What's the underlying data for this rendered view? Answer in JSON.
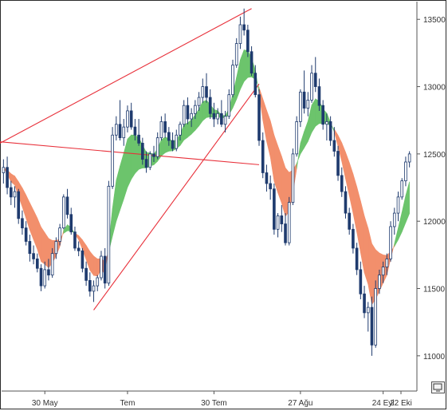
{
  "chart_data": {
    "type": "candlestick",
    "x_ticks": [
      "30 May",
      "Tem",
      "30 Tem",
      "27 Ağu",
      "24 Eyl",
      "22 Eki"
    ],
    "y_ticks": [
      11000,
      11500,
      12000,
      12500,
      13000,
      13500
    ],
    "ylim": [
      10750,
      13620
    ],
    "grid": false,
    "colors": {
      "up_candle": "#ffffff",
      "down_candle": "#1f3b6e",
      "candle_outline": "#1f3b6e",
      "bull_cloud": "#6cc46c",
      "bear_cloud": "#f28f6c",
      "trendline": "#e8303a"
    },
    "trendlines": [
      {
        "from": [
          "start",
          12580
        ],
        "to": [
          "mid Ağu",
          13580
        ]
      },
      {
        "from": [
          "start",
          12590
        ],
        "to": [
          "late Ağu",
          12420
        ]
      },
      {
        "from": [
          "early Tem",
          11340
        ],
        "to": [
          "late Ağu",
          13020
        ]
      }
    ],
    "candles": [
      [
        12360,
        12460,
        12280,
        12400
      ],
      [
        12400,
        12480,
        12200,
        12250
      ],
      [
        12250,
        12300,
        12120,
        12180
      ],
      [
        12180,
        12260,
        12100,
        12220
      ],
      [
        12220,
        12240,
        11980,
        12020
      ],
      [
        12020,
        12080,
        11900,
        11950
      ],
      [
        11950,
        12000,
        11820,
        11850
      ],
      [
        11850,
        11900,
        11700,
        11760
      ],
      [
        11760,
        11820,
        11680,
        11720
      ],
      [
        11720,
        11760,
        11620,
        11650
      ],
      [
        11650,
        11680,
        11480,
        11520
      ],
      [
        11520,
        11700,
        11500,
        11640
      ],
      [
        11640,
        11720,
        11560,
        11600
      ],
      [
        11600,
        11800,
        11580,
        11760
      ],
      [
        11760,
        11880,
        11720,
        11850
      ],
      [
        11850,
        11980,
        11820,
        11950
      ],
      [
        11950,
        12200,
        11940,
        12180
      ],
      [
        12180,
        12240,
        12020,
        12050
      ],
      [
        12050,
        12100,
        11900,
        11920
      ],
      [
        11920,
        11960,
        11780,
        11800
      ],
      [
        11800,
        11850,
        11740,
        11780
      ],
      [
        11780,
        11800,
        11620,
        11650
      ],
      [
        11650,
        11700,
        11520,
        11560
      ],
      [
        11560,
        11620,
        11440,
        11480
      ],
      [
        11480,
        11560,
        11400,
        11520
      ],
      [
        11520,
        11600,
        11480,
        11580
      ],
      [
        11580,
        11780,
        11560,
        11740
      ],
      [
        11740,
        11800,
        11500,
        11540
      ],
      [
        11540,
        12300,
        11520,
        12260
      ],
      [
        12260,
        12700,
        12240,
        12640
      ],
      [
        12640,
        12780,
        12600,
        12720
      ],
      [
        12720,
        12900,
        12600,
        12620
      ],
      [
        12620,
        12760,
        12560,
        12700
      ],
      [
        12700,
        12860,
        12660,
        12820
      ],
      [
        12820,
        12880,
        12680,
        12700
      ],
      [
        12700,
        12760,
        12600,
        12640
      ],
      [
        12640,
        12760,
        12560,
        12580
      ],
      [
        12580,
        12620,
        12420,
        12460
      ],
      [
        12460,
        12520,
        12360,
        12400
      ],
      [
        12400,
        12520,
        12380,
        12500
      ],
      [
        12500,
        12560,
        12440,
        12480
      ],
      [
        12480,
        12660,
        12460,
        12620
      ],
      [
        12620,
        12780,
        12600,
        12740
      ],
      [
        12740,
        12800,
        12620,
        12660
      ],
      [
        12660,
        12700,
        12560,
        12600
      ],
      [
        12600,
        12660,
        12520,
        12540
      ],
      [
        12540,
        12680,
        12520,
        12640
      ],
      [
        12640,
        12740,
        12600,
        12720
      ],
      [
        12720,
        12900,
        12700,
        12860
      ],
      [
        12860,
        12920,
        12720,
        12760
      ],
      [
        12760,
        12840,
        12700,
        12800
      ],
      [
        12800,
        12900,
        12760,
        12860
      ],
      [
        12860,
        12960,
        12820,
        12920
      ],
      [
        12920,
        13060,
        12880,
        13000
      ],
      [
        13000,
        13100,
        12880,
        12920
      ],
      [
        12920,
        12980,
        12760,
        12800
      ],
      [
        12800,
        12880,
        12700,
        12760
      ],
      [
        12760,
        12840,
        12720,
        12800
      ],
      [
        12800,
        12900,
        12700,
        12720
      ],
      [
        12720,
        12820,
        12660,
        12780
      ],
      [
        12780,
        12980,
        12760,
        12940
      ],
      [
        12940,
        13200,
        12920,
        13160
      ],
      [
        13160,
        13360,
        13140,
        13320
      ],
      [
        13320,
        13520,
        13280,
        13460
      ],
      [
        13460,
        13580,
        13380,
        13420
      ],
      [
        13420,
        13460,
        13220,
        13260
      ],
      [
        13260,
        13300,
        13080,
        13100
      ],
      [
        13100,
        13160,
        12920,
        12940
      ],
      [
        12940,
        12980,
        12560,
        12600
      ],
      [
        12600,
        12660,
        12320,
        12360
      ],
      [
        12360,
        12420,
        12220,
        12280
      ],
      [
        12280,
        12340,
        12160,
        12240
      ],
      [
        12240,
        12280,
        11900,
        11940
      ],
      [
        11940,
        12060,
        11880,
        12040
      ],
      [
        12040,
        12120,
        11920,
        11980
      ],
      [
        11980,
        12060,
        11820,
        11840
      ],
      [
        11840,
        12180,
        11820,
        12140
      ],
      [
        12140,
        12540,
        12120,
        12500
      ],
      [
        12500,
        12780,
        12480,
        12740
      ],
      [
        12740,
        12980,
        12700,
        12960
      ],
      [
        12960,
        13120,
        12800,
        12840
      ],
      [
        12840,
        12960,
        12780,
        12900
      ],
      [
        12900,
        13160,
        12880,
        13100
      ],
      [
        13100,
        13220,
        12960,
        13000
      ],
      [
        13000,
        13060,
        12820,
        12860
      ],
      [
        12860,
        12900,
        12680,
        12720
      ],
      [
        12720,
        12800,
        12600,
        12740
      ],
      [
        12740,
        12780,
        12560,
        12600
      ],
      [
        12600,
        12700,
        12480,
        12520
      ],
      [
        12520,
        12560,
        12300,
        12340
      ],
      [
        12340,
        12400,
        12180,
        12220
      ],
      [
        12220,
        12260,
        12020,
        12060
      ],
      [
        12060,
        12100,
        11900,
        11940
      ],
      [
        11940,
        11980,
        11760,
        11800
      ],
      [
        11800,
        11840,
        11600,
        11640
      ],
      [
        11640,
        11700,
        11420,
        11460
      ],
      [
        11460,
        11520,
        11280,
        11320
      ],
      [
        11320,
        11400,
        11180,
        11360
      ],
      [
        11360,
        11440,
        11000,
        11080
      ],
      [
        11080,
        11560,
        11060,
        11500
      ],
      [
        11500,
        11640,
        11460,
        11600
      ],
      [
        11600,
        11700,
        11540,
        11660
      ],
      [
        11660,
        11760,
        11600,
        11720
      ],
      [
        11720,
        12000,
        11700,
        11960
      ],
      [
        11960,
        12100,
        11900,
        12060
      ],
      [
        12060,
        12220,
        12000,
        12180
      ],
      [
        12180,
        12320,
        12160,
        12300
      ],
      [
        12300,
        12480,
        12260,
        12440
      ],
      [
        12440,
        12520,
        12400,
        12500
      ]
    ]
  }
}
